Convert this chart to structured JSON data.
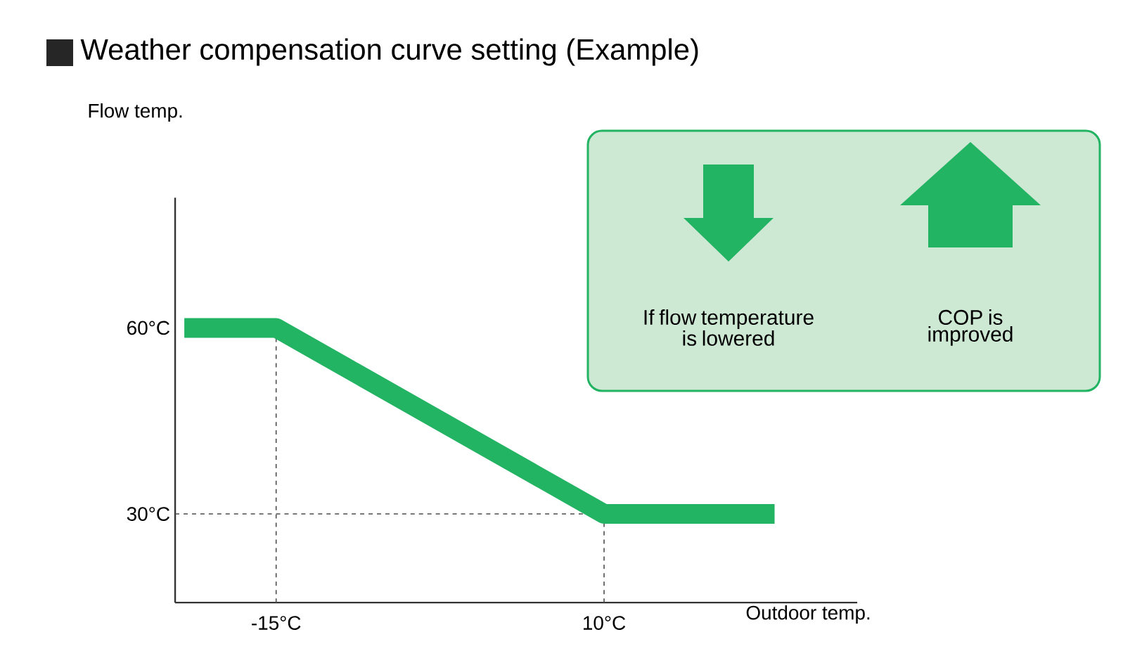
{
  "chart_data": {
    "type": "line",
    "title": "Weather compensation curve setting (Example)",
    "xlabel": "Outdoor temp.",
    "ylabel": "Flow temp.",
    "x": [
      -22,
      -15,
      10,
      23
    ],
    "series": [
      {
        "color": "#22b363",
        "values": [
          60,
          60,
          30,
          30
        ]
      }
    ],
    "xlim": [
      -22.7,
      29.3
    ],
    "ylim": [
      15.7,
      81
    ],
    "xticks": [
      {
        "value": -15,
        "label": "-15°C"
      },
      {
        "value": 10,
        "label": "10°C"
      }
    ],
    "yticks": [
      {
        "value": 30,
        "label": "30°C"
      },
      {
        "value": 60,
        "label": "60°C"
      }
    ],
    "ref_lines": [
      {
        "axis": "x",
        "value": -15,
        "line_style": "dashed"
      },
      {
        "axis": "x",
        "value": 10,
        "line_style": "dashed"
      },
      {
        "axis": "y",
        "value": 30,
        "line_style": "dashed"
      }
    ],
    "grid": false,
    "marker": "none",
    "line_style": "solid",
    "annotations": [
      "If flow temperature is lowered",
      "COP is improved"
    ]
  }
}
